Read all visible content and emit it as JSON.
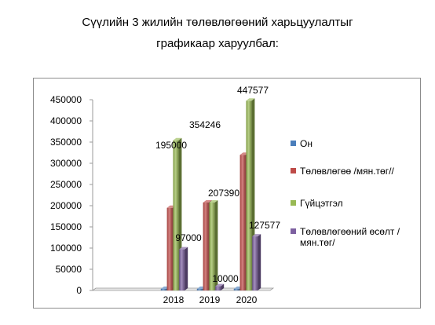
{
  "title_line1": "Сүүлийн 3 жилийн төлөвлөгөөний харьцуулалтыг",
  "title_line2": "графикаар харуулбал:",
  "chart_data": {
    "type": "bar",
    "style": "3d-clustered-column",
    "categories": [
      "2018",
      "2019",
      "2020"
    ],
    "series": [
      {
        "name": "Он",
        "color": "#4a7ebb",
        "values": [
          2018,
          2019,
          2020
        ]
      },
      {
        "name": "Төлөвлөгөө /мян.төг//",
        "color": "#be4b48",
        "values": [
          195000,
          207390,
          320000
        ]
      },
      {
        "name": "Гүйцэтгэл",
        "color": "#98b954",
        "values": [
          354246,
          207390,
          447577
        ]
      },
      {
        "name": "Төлөвлөгөөний өсөлт /мян.төг/",
        "color": "#7d60a0",
        "values": [
          97000,
          10000,
          127577
        ]
      }
    ],
    "data_labels": [
      {
        "text": "354246",
        "category": "2018",
        "series": 2
      },
      {
        "text": "195000",
        "category": "2018",
        "series": 1
      },
      {
        "text": "97000",
        "category": "2018",
        "series": 3
      },
      {
        "text": "207390",
        "category": "2019",
        "series": 2
      },
      {
        "text": "10000",
        "category": "2019",
        "series": 3
      },
      {
        "text": "447577",
        "category": "2020",
        "series": 2
      },
      {
        "text": "127577",
        "category": "2020",
        "series": 3
      }
    ],
    "y_ticks": [
      "0",
      "50000",
      "100000",
      "150000",
      "200000",
      "250000",
      "300000",
      "350000",
      "400000",
      "450000"
    ],
    "ylim": [
      0,
      450000
    ],
    "grid": false,
    "legend_position": "right"
  }
}
